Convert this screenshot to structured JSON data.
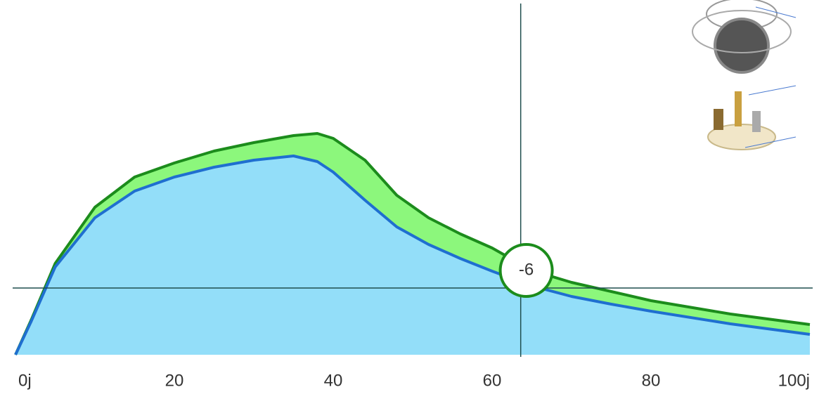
{
  "chart_data": {
    "type": "area",
    "x": [
      0,
      2,
      5,
      10,
      15,
      20,
      25,
      30,
      35,
      38,
      40,
      44,
      48,
      52,
      56,
      60,
      65,
      70,
      75,
      80,
      90,
      100
    ],
    "series": [
      {
        "color": "#1c8c1c",
        "fill": "#8cf77c",
        "values": [
          0,
          10,
          26,
          42,
          50.6,
          54.6,
          58,
          60.4,
          62.4,
          63,
          61.6,
          55.4,
          45.4,
          39,
          34.4,
          30.4,
          24,
          20.6,
          18,
          15.4,
          11.6,
          8.6
        ]
      },
      {
        "color": "#1f6fd0",
        "fill": "#93def9",
        "values": [
          0,
          9.6,
          25,
          39,
          46.6,
          50.6,
          53.4,
          55.4,
          56.6,
          55,
          52,
          44,
          36.4,
          31.4,
          27.4,
          23.8,
          19.6,
          16.6,
          14.4,
          12.4,
          8.8,
          5.8
        ]
      }
    ],
    "xlim": [
      0,
      100
    ],
    "ylim": [
      0,
      100
    ],
    "xticks": [
      {
        "value": 0,
        "label": "0j"
      },
      20,
      40,
      60,
      80,
      {
        "value": 100,
        "label": "100j"
      }
    ],
    "crosshair": {
      "x": 63.6,
      "y": 19,
      "color": "#1f4f4f"
    },
    "marker": {
      "label": "-6",
      "x": 64.3,
      "y": 24
    }
  }
}
